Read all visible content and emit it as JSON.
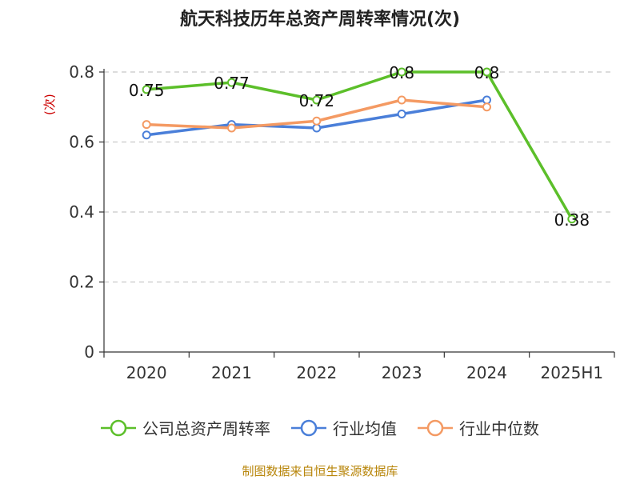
{
  "chart_data": {
    "type": "line",
    "title": "航天科技历年总资产周转率情况(次)",
    "ylabel": "(次)",
    "categories": [
      "2020",
      "2021",
      "2022",
      "2023",
      "2024",
      "2025H1"
    ],
    "ylim": [
      0,
      0.8
    ],
    "yticks": [
      0,
      0.2,
      0.4,
      0.6,
      0.8
    ],
    "ytick_labels": [
      "0",
      "0.2",
      "0.4",
      "0.6",
      "0.8"
    ],
    "grid": true,
    "legend_position": "bottom",
    "series": [
      {
        "name": "公司总资产周转率",
        "color": "#5cbf2a",
        "values": [
          0.75,
          0.77,
          0.72,
          0.8,
          0.8,
          0.38
        ],
        "labels": [
          "0.75",
          "0.77",
          "0.72",
          "0.8",
          "0.8",
          "0.38"
        ]
      },
      {
        "name": "行业均值",
        "color": "#4a7fd9",
        "values": [
          0.62,
          0.65,
          0.64,
          0.68,
          0.72,
          null
        ]
      },
      {
        "name": "行业中位数",
        "color": "#f49a63",
        "values": [
          0.65,
          0.64,
          0.66,
          0.72,
          0.7,
          null
        ]
      }
    ],
    "source": "制图数据来自恒生聚源数据库"
  }
}
